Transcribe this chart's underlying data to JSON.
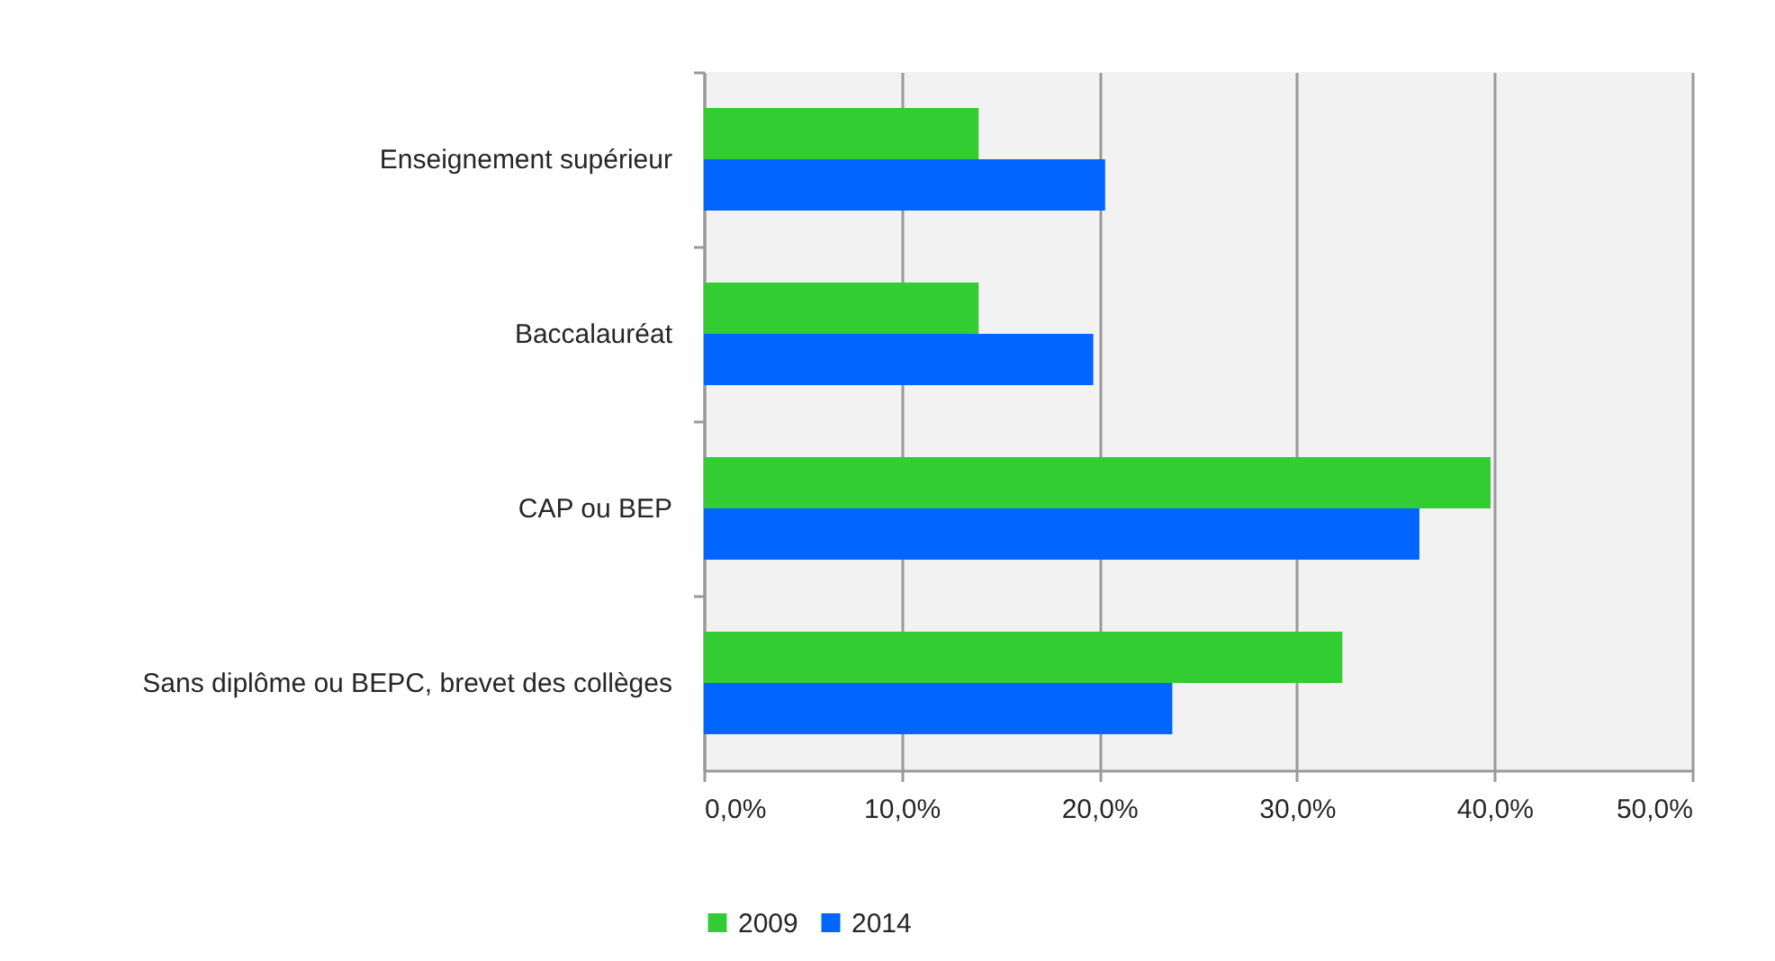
{
  "chart_data": {
    "type": "bar",
    "orientation": "horizontal",
    "categories": [
      "Enseignement supérieur",
      "Baccalauréat",
      "CAP ou BEP",
      "Sans diplôme ou BEPC, brevet des collèges"
    ],
    "series": [
      {
        "name": "2009",
        "color": "#33cc33",
        "values": [
          13.9,
          13.9,
          39.8,
          32.3
        ]
      },
      {
        "name": "2014",
        "color": "#0066ff",
        "values": [
          20.3,
          19.7,
          36.2,
          23.7
        ]
      }
    ],
    "xlim": [
      0,
      50
    ],
    "xticks": [
      {
        "value": 0,
        "label": "0,0%"
      },
      {
        "value": 10,
        "label": "10,0%"
      },
      {
        "value": 20,
        "label": "20,0%"
      },
      {
        "value": 30,
        "label": "30,0%"
      },
      {
        "value": 40,
        "label": "40,0%"
      },
      {
        "value": 50,
        "label": "50,0%"
      }
    ],
    "grid": "x",
    "legend": "bottom"
  }
}
